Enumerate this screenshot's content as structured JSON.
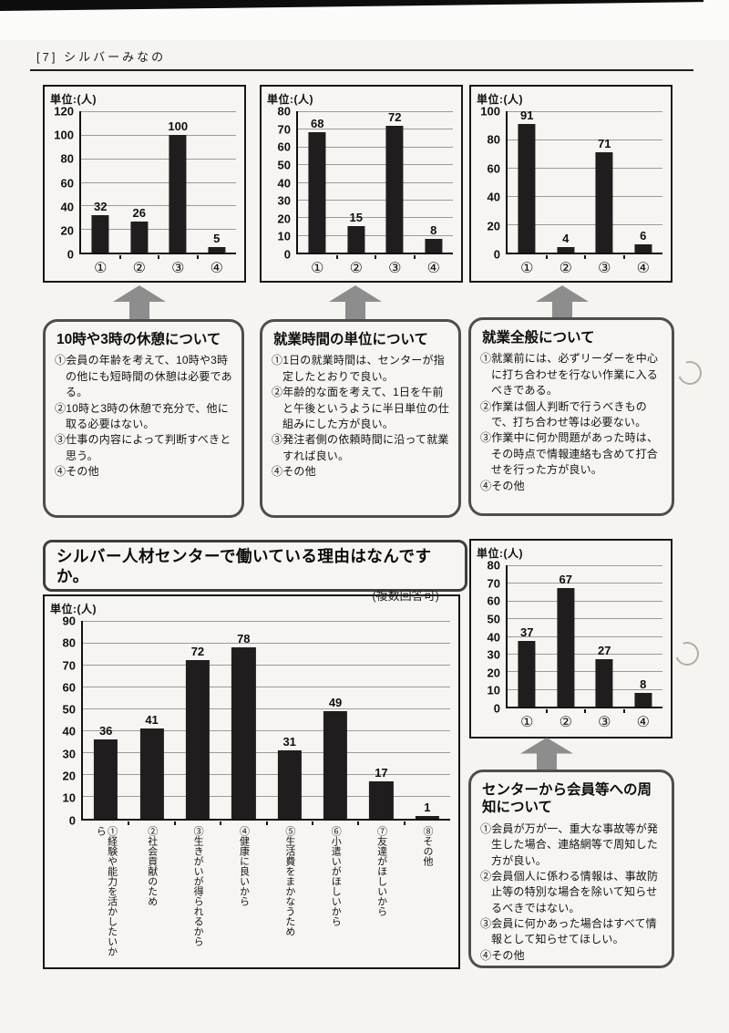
{
  "header": {
    "title": "[7] シルバーみなの"
  },
  "question": {
    "title": "シルバー人材センターで働いている理由はなんですか。",
    "note": "(複数回答可)"
  },
  "chart_data": [
    {
      "id": "rest-breaks",
      "type": "bar",
      "unit": "単位:(人)",
      "categories": [
        "①",
        "②",
        "③",
        "④"
      ],
      "values": [
        32,
        26,
        100,
        5
      ],
      "ylim": [
        0,
        120
      ],
      "ytick_step": 20,
      "grid": true,
      "bar_color": "#201d1e"
    },
    {
      "id": "working-hour-unit",
      "type": "bar",
      "unit": "単位:(人)",
      "categories": [
        "①",
        "②",
        "③",
        "④"
      ],
      "values": [
        68,
        15,
        72,
        8
      ],
      "ylim": [
        0,
        80
      ],
      "ytick_step": 10,
      "grid": true,
      "bar_color": "#201d1e"
    },
    {
      "id": "work-general",
      "type": "bar",
      "unit": "単位:(人)",
      "categories": [
        "①",
        "②",
        "③",
        "④"
      ],
      "values": [
        91,
        4,
        71,
        6
      ],
      "ylim": [
        0,
        100
      ],
      "ytick_step": 20,
      "grid": true,
      "bar_color": "#201d1e"
    },
    {
      "id": "reasons-for-working",
      "type": "bar",
      "unit": "単位:(人)",
      "categories": [
        "①経験や能力を活かしたいから",
        "②社会貢献のため",
        "③生きがいが得られるから",
        "④健康に良いから",
        "⑤生活費をまかなうため",
        "⑥小遣いがほしいから",
        "⑦友達がほしいから",
        "⑧その他"
      ],
      "values": [
        36,
        41,
        72,
        78,
        31,
        49,
        17,
        1
      ],
      "ylim": [
        0,
        90
      ],
      "ytick_step": 10,
      "grid": true,
      "bar_color": "#201d1e"
    },
    {
      "id": "notification-to-members",
      "type": "bar",
      "unit": "単位:(人)",
      "categories": [
        "①",
        "②",
        "③",
        "④"
      ],
      "values": [
        37,
        67,
        27,
        8
      ],
      "ylim": [
        0,
        80
      ],
      "ytick_step": 10,
      "grid": true,
      "bar_color": "#201d1e"
    }
  ],
  "boxes": [
    {
      "title": "10時や3時の休憩について",
      "items": [
        "①会員の年齢を考えて、10時や3時の他にも短時間の休憩は必要である。",
        "②10時と3時の休憩で充分で、他に取る必要はない。",
        "③仕事の内容によって判断すべきと思う。",
        "④その他"
      ]
    },
    {
      "title": "就業時間の単位について",
      "items": [
        "①1日の就業時間は、センターが指定したとおりで良い。",
        "②年齢的な面を考えて、1日を午前と午後というように半日単位の仕組みにした方が良い。",
        "③発注者側の依頼時間に沿って就業すれば良い。",
        "④その他"
      ]
    },
    {
      "title": "就業全般について",
      "items": [
        "①就業前には、必ずリーダーを中心に打ち合わせを行ない作業に入るべきである。",
        "②作業は個人判断で行うべきもので、打ち合わせ等は必要ない。",
        "③作業中に何か問題があった時は、その時点で情報連絡も含めて打合せを行った方が良い。",
        "④その他"
      ]
    },
    {
      "title": "センターから会員等への周知について",
      "items": [
        "①会員が万が一、重大な事故等が発生した場合、連絡網等で周知した方が良い。",
        "②会員個人に係わる情報は、事故防止等の特別な場合を除いて知らせるべきではない。",
        "③会員に何かあった場合はすべて情報として知らせてほしい。",
        "④その他"
      ]
    }
  ]
}
